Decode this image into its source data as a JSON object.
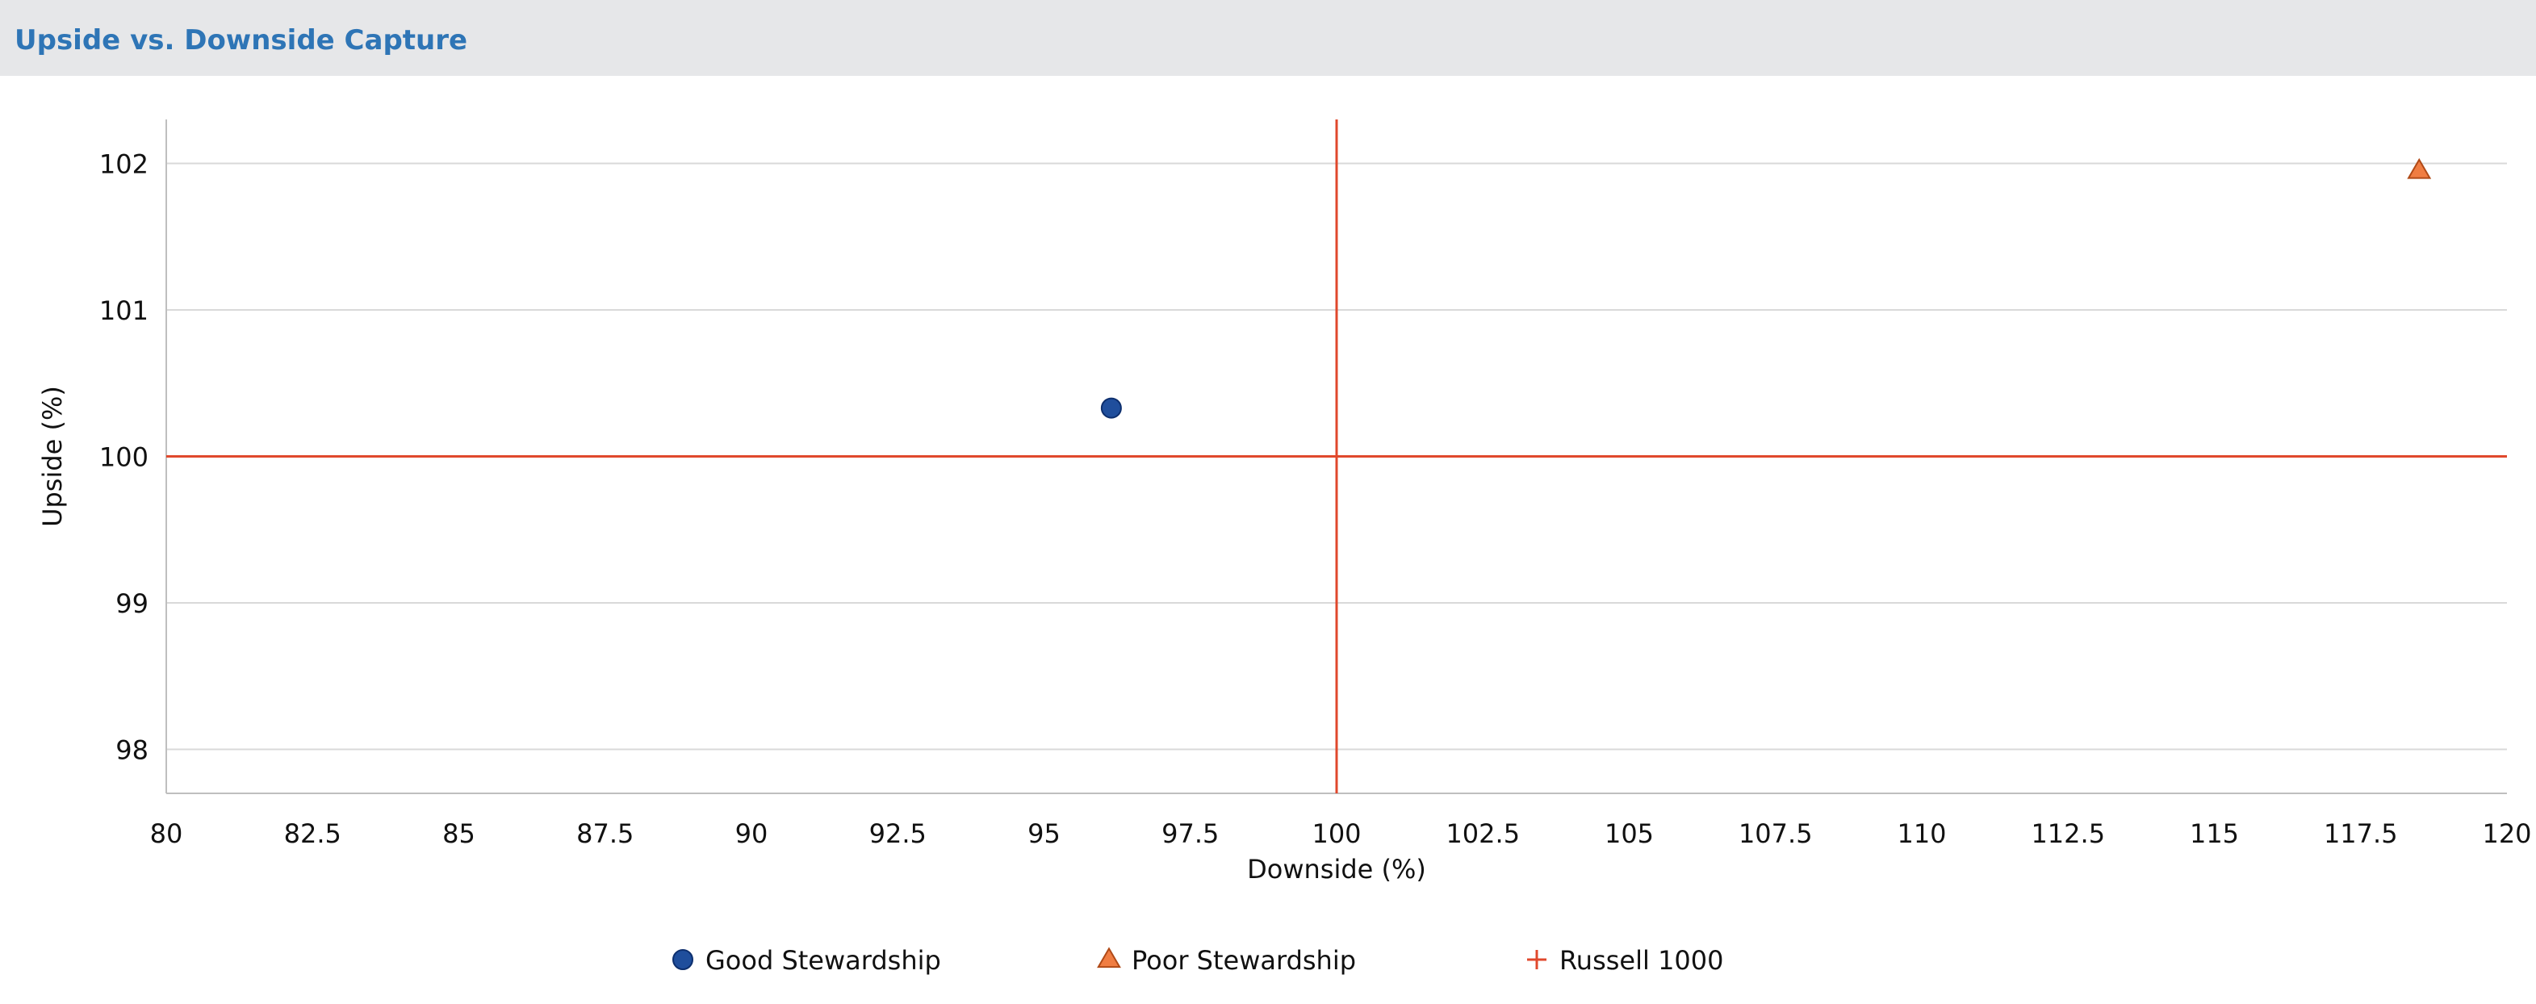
{
  "header": {
    "title": "Upside vs. Downside Capture"
  },
  "chart_data": {
    "type": "scatter",
    "title": "Upside vs. Downside Capture",
    "xlabel": "Downside (%)",
    "ylabel": "Upside (%)",
    "xlim": [
      80,
      120
    ],
    "ylim": [
      97.7,
      102.3
    ],
    "xticks": [
      "80",
      "82.5",
      "85",
      "87.5",
      "90",
      "92.5",
      "95",
      "97.5",
      "100",
      "102.5",
      "105",
      "107.5",
      "110",
      "112.5",
      "115",
      "117.5",
      "120"
    ],
    "yticks": [
      "98",
      "99",
      "100",
      "101",
      "102"
    ],
    "grid": "horizontal",
    "legend_position": "bottom",
    "series": [
      {
        "name": "Good Stewardship",
        "marker": "circle",
        "color": "#1f4e9c",
        "x": 96.15,
        "y": 100.33
      },
      {
        "name": "Poor Stewardship",
        "marker": "triangle",
        "color": "#f07d42",
        "x": 118.5,
        "y": 101.95
      },
      {
        "name": "Russell 1000",
        "marker": "cross",
        "color": "#e0482c",
        "x": 100,
        "y": 100
      }
    ]
  }
}
